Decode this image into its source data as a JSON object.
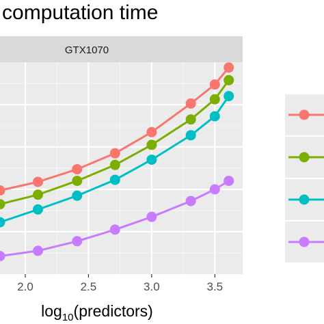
{
  "chart_data": {
    "type": "line",
    "title": "o computation time",
    "panel_label": "GTX1070",
    "xlabel_main": "log",
    "xlabel_sub": "10",
    "xlabel_rest": "(predictors)",
    "xlim": [
      1.8,
      3.72
    ],
    "ylim": [
      0,
      10
    ],
    "x_ticks": [
      2.0,
      2.5,
      3.0,
      3.5
    ],
    "x_tick_labels": [
      "2.0",
      "2.5",
      "3.0",
      "3.5"
    ],
    "x": [
      1.8,
      2.1,
      2.41,
      2.71,
      3.0,
      3.31,
      3.5,
      3.61
    ],
    "series": [
      {
        "color": "#F8766D",
        "values": [
          3.95,
          4.35,
          4.95,
          5.7,
          6.7,
          8.05,
          8.95,
          9.75
        ]
      },
      {
        "color": "#7CAE00",
        "values": [
          3.3,
          3.75,
          4.4,
          5.15,
          6.1,
          7.3,
          8.25,
          9.15
        ]
      },
      {
        "color": "#00BFC4",
        "values": [
          2.45,
          3.05,
          3.7,
          4.45,
          5.4,
          6.55,
          7.45,
          8.4
        ]
      },
      {
        "color": "#C77CFF",
        "values": [
          0.85,
          1.1,
          1.55,
          2.1,
          2.7,
          3.45,
          4.0,
          4.4
        ]
      }
    ],
    "grid": true,
    "legend": "right"
  }
}
